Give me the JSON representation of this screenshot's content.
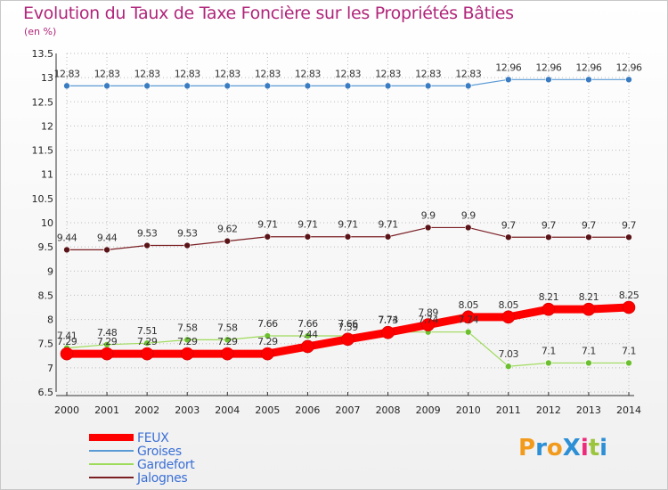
{
  "title": "Evolution du Taux de Taxe Foncière sur les Propriétés Bâties",
  "unit_label": "(en %)",
  "logo": {
    "text": "ProXiti",
    "colors": [
      "#f29a1c",
      "#2d8fd5",
      "#f29a1c",
      "#2d8fd5",
      "#ee2a7b",
      "#9bc53d",
      "#2d8fd5"
    ]
  },
  "colors": {
    "title": "#b0257a",
    "legend_text": "#3b6fd6",
    "axis": "#333333",
    "grid": "#bbbbbb"
  },
  "chart_data": {
    "type": "line",
    "title": "Evolution du Taux de Taxe Foncière sur les Propriétés Bâties",
    "ylabel": "(en %)",
    "xlabel": "",
    "ylim": [
      6.5,
      13.5
    ],
    "yticks": [
      "6.5",
      "7",
      "7.5",
      "8",
      "8.5",
      "9",
      "9.5",
      "10",
      "10.5",
      "11",
      "11.5",
      "12",
      "12.5",
      "13",
      "13.5"
    ],
    "x": [
      "2000",
      "2001",
      "2002",
      "2003",
      "2004",
      "2005",
      "2006",
      "2007",
      "2008",
      "2009",
      "2010",
      "2011",
      "2012",
      "2013",
      "2014"
    ],
    "grid": true,
    "legend_position": "bottom-left",
    "series": [
      {
        "name": "Groises",
        "color": "#5b9bd5",
        "marker": "#3a7cc2",
        "width": 1.2,
        "values": [
          12.83,
          12.83,
          12.83,
          12.83,
          12.83,
          12.83,
          12.83,
          12.83,
          12.83,
          12.83,
          12.83,
          12.96,
          12.96,
          12.96,
          12.96
        ],
        "labels": [
          "12.83",
          "12.83",
          "12.83",
          "12.83",
          "12.83",
          "12.83",
          "12.83",
          "12.83",
          "12.83",
          "12.83",
          "12.83",
          "12.96",
          "12.96",
          "12.96",
          "12.96"
        ]
      },
      {
        "name": "Jalognes",
        "color": "#7a1f24",
        "marker": "#5a1418",
        "width": 1.2,
        "values": [
          9.44,
          9.44,
          9.53,
          9.53,
          9.62,
          9.71,
          9.71,
          9.71,
          9.71,
          9.9,
          9.9,
          9.7,
          9.7,
          9.7,
          9.7
        ],
        "labels": [
          "9.44",
          "9.44",
          "9.53",
          "9.53",
          "9.62",
          "9.71",
          "9.71",
          "9.71",
          "9.71",
          "9.9",
          "9.9",
          "9.7",
          "9.7",
          "9.7",
          "9.7"
        ]
      },
      {
        "name": "Gardefort",
        "color": "#9edb5a",
        "marker": "#6cc030",
        "width": 1.2,
        "values": [
          7.41,
          7.48,
          7.51,
          7.58,
          7.58,
          7.66,
          7.66,
          7.66,
          7.74,
          7.74,
          7.74,
          7.03,
          7.1,
          7.1,
          7.1
        ],
        "labels": [
          "7.41",
          "7.48",
          "7.51",
          "7.58",
          "7.58",
          "7.66",
          "7.66",
          "7.66",
          "7.74",
          "7.74",
          "7.74",
          "7.03",
          "7.1",
          "7.1",
          "7.1"
        ]
      },
      {
        "name": "FEUX",
        "color": "#ff0000",
        "marker": "#ff0000",
        "width": 9,
        "values": [
          7.29,
          7.29,
          7.29,
          7.29,
          7.29,
          7.29,
          7.44,
          7.59,
          7.73,
          7.89,
          8.05,
          8.05,
          8.21,
          8.21,
          8.25
        ],
        "labels": [
          "7.29",
          "7.29",
          "7.29",
          "7.29",
          "7.29",
          "7.29",
          "7.44",
          "7.59",
          "7.73",
          "7.89",
          "8.05",
          "8.05",
          "8.21",
          "8.21",
          "8.25"
        ]
      }
    ]
  },
  "legend": [
    {
      "label": "FEUX",
      "color": "#ff0000",
      "thickness": 8
    },
    {
      "label": "Groises",
      "color": "#5b9bd5",
      "thickness": 2
    },
    {
      "label": "Gardefort",
      "color": "#9edb5a",
      "thickness": 2
    },
    {
      "label": "Jalognes",
      "color": "#7a1f24",
      "thickness": 2
    }
  ]
}
